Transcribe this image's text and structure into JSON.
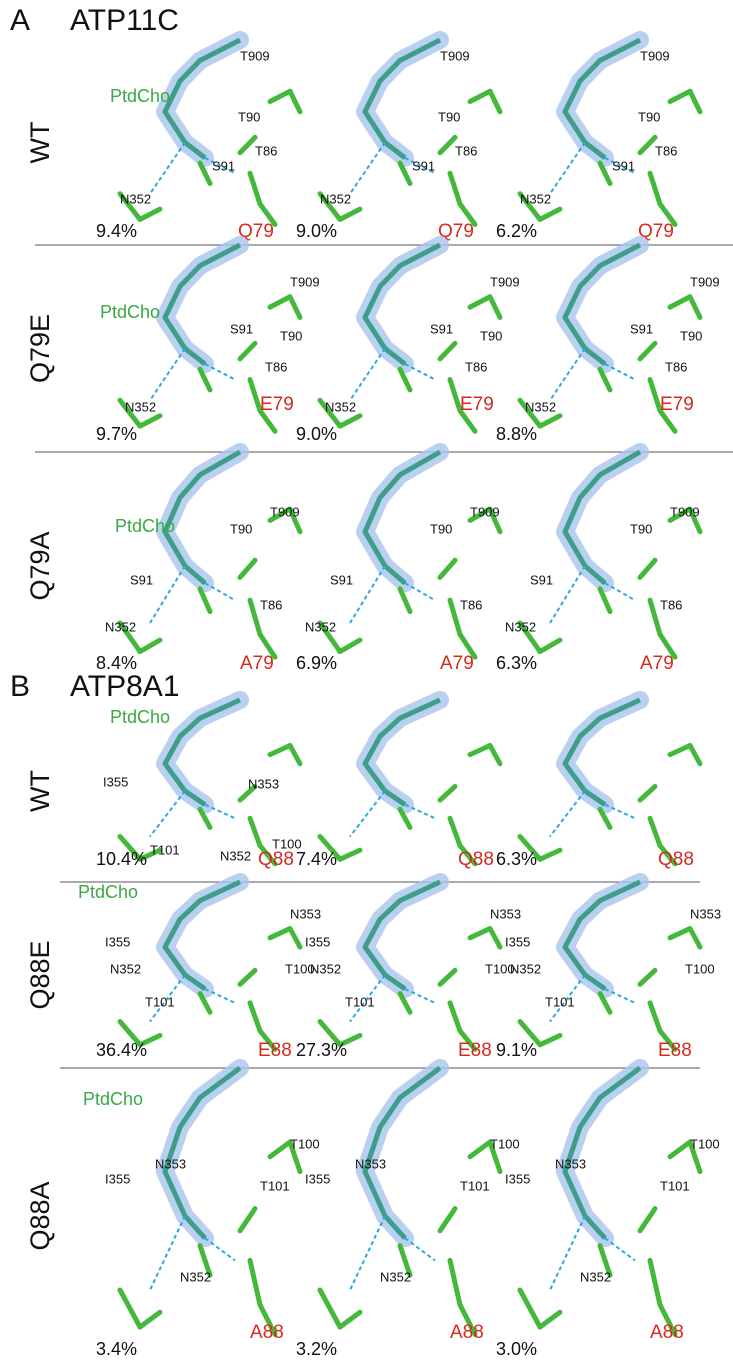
{
  "panels": [
    {
      "letter": "A",
      "protein": "ATP11C",
      "rows": [
        {
          "variant": "WT",
          "ligand": "PtdCho",
          "residue": "Q79",
          "labels": [
            "T909",
            "T90",
            "S91",
            "T86",
            "N352"
          ],
          "percentages": [
            "9.4%",
            "9.0%",
            "6.2%"
          ]
        },
        {
          "variant": "Q79E",
          "ligand": "PtdCho",
          "residue": "E79",
          "labels": [
            "T909",
            "S91",
            "T90",
            "T86",
            "N352"
          ],
          "percentages": [
            "9.7%",
            "9.0%",
            "8.8%"
          ]
        },
        {
          "variant": "Q79A",
          "ligand": "PtdCho",
          "residue": "A79",
          "labels": [
            "T909",
            "T90",
            "S91",
            "T86",
            "N352"
          ],
          "percentages": [
            "8.4%",
            "6.9%",
            "6.3%"
          ]
        }
      ]
    },
    {
      "letter": "B",
      "protein": "ATP8A1",
      "rows": [
        {
          "variant": "WT",
          "ligand": "PtdCho",
          "residue": "Q88",
          "labels": [
            "I355",
            "N353",
            "T101",
            "N352",
            "T100"
          ],
          "percentages": [
            "10.4%",
            "7.4%",
            "6.3%"
          ]
        },
        {
          "variant": "Q88E",
          "ligand": "PtdCho",
          "residue": "E88",
          "labels": [
            "I355",
            "N353",
            "N352",
            "T100",
            "T101"
          ],
          "percentages": [
            "36.4%",
            "27.3%",
            "9.1%"
          ]
        },
        {
          "variant": "Q88A",
          "ligand": "PtdCho",
          "residue": "A88",
          "labels": [
            "T100",
            "N353",
            "I355",
            "T101",
            "N352"
          ],
          "percentages": [
            "3.4%",
            "3.2%",
            "3.0%"
          ]
        }
      ]
    }
  ]
}
